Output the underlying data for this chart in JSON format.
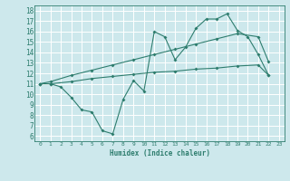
{
  "xlabel": "Humidex (Indice chaleur)",
  "bg_color": "#cde8ec",
  "grid_color": "#ffffff",
  "line_color": "#2e7d6e",
  "xlim": [
    -0.5,
    23.5
  ],
  "ylim": [
    5.5,
    18.5
  ],
  "xticks": [
    0,
    1,
    2,
    3,
    4,
    5,
    6,
    7,
    8,
    9,
    10,
    11,
    12,
    13,
    14,
    15,
    16,
    17,
    18,
    19,
    20,
    21,
    22,
    23
  ],
  "yticks": [
    6,
    7,
    8,
    9,
    10,
    11,
    12,
    13,
    14,
    15,
    16,
    17,
    18
  ],
  "line1_x": [
    0,
    1,
    2,
    3,
    4,
    5,
    6,
    7,
    8,
    9,
    10,
    11,
    12,
    13,
    14,
    15,
    16,
    17,
    18,
    19,
    20,
    21,
    22
  ],
  "line1_y": [
    11,
    11,
    10.7,
    9.7,
    8.5,
    8.3,
    6.5,
    6.2,
    9.5,
    11.3,
    10.3,
    16.0,
    15.5,
    13.3,
    14.5,
    16.3,
    17.2,
    17.2,
    17.7,
    16.1,
    15.5,
    13.8,
    11.8
  ],
  "line2_x": [
    0,
    1,
    3,
    5,
    7,
    9,
    11,
    13,
    15,
    17,
    19,
    21,
    22
  ],
  "line2_y": [
    11,
    11.2,
    11.8,
    12.3,
    12.8,
    13.3,
    13.8,
    14.3,
    14.8,
    15.3,
    15.8,
    15.5,
    13.1
  ],
  "line3_x": [
    0,
    1,
    3,
    5,
    7,
    9,
    11,
    13,
    15,
    17,
    19,
    21,
    22
  ],
  "line3_y": [
    11,
    11.0,
    11.2,
    11.5,
    11.7,
    11.9,
    12.1,
    12.2,
    12.4,
    12.5,
    12.7,
    12.8,
    11.8
  ]
}
